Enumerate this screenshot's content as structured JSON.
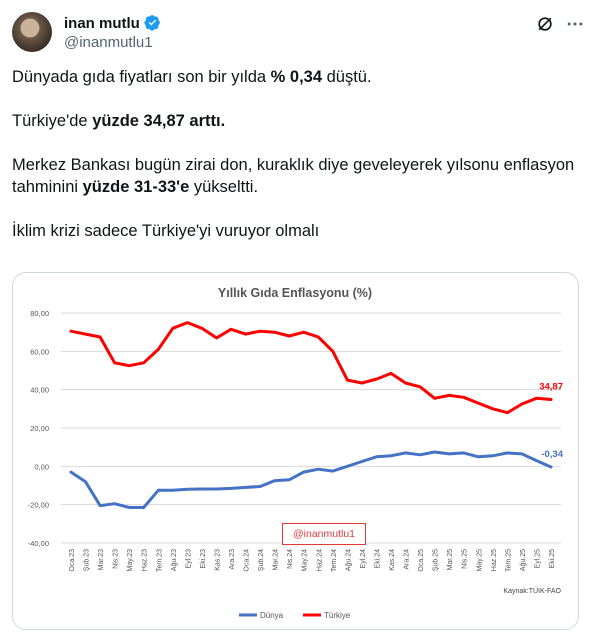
{
  "tweet": {
    "author_name": "inan mutlu",
    "author_handle": "@inanmutlu1",
    "icons": [
      "verified-badge-icon",
      "grok-icon",
      "more-options-icon"
    ],
    "line1_a": "Dünyada gıda fiyatları son bir yılda ",
    "line1_b": "% 0,34",
    "line1_c": " düştü.",
    "line2_a": "Türkiye'de ",
    "line2_b": "yüzde 34,87 arttı.",
    "line3_a": "Merkez Bankası bugün zirai don, kuraklık diye geveleyerek yılsonu enflasyon tahminini ",
    "line3_b": "yüzde 31-33'e",
    "line3_c": " yükseltti.",
    "line4": "İklim krizi sadece Türkiye'yi vuruyor olmalı"
  },
  "watermark": "@inanmutlu1",
  "chart_data": {
    "type": "line",
    "title": "Yıllık Gıda Enflasyonu (%)",
    "categories": [
      "Oca.23",
      "Şub.23",
      "Mar.23",
      "Nis.23",
      "May.23",
      "Haz.23",
      "Tem.23",
      "Ağu.23",
      "Eyl.23",
      "Eki.23",
      "Kas.23",
      "Ara.23",
      "Oca.24",
      "Şub.24",
      "Mar.24",
      "Nis.24",
      "May.24",
      "Haz.24",
      "Tem.24",
      "Ağu.24",
      "Eyl.24",
      "Eki.24",
      "Kas.24",
      "Ara.24",
      "Oca.25",
      "Şub.25",
      "Mar.25",
      "Nis.25",
      "May.25",
      "Haz.25",
      "Tem.25",
      "Ağu.25",
      "Eyl.25",
      "Eki.25"
    ],
    "series": [
      {
        "name": "Dünya",
        "color": "#4472c4",
        "values": [
          -3,
          -8,
          -20.5,
          -19.5,
          -21.5,
          -21.5,
          -12.5,
          -12.5,
          -12,
          -11.8,
          -11.8,
          -11.5,
          -11,
          -10.5,
          -7.5,
          -7,
          -3,
          -1.5,
          -2.5,
          0,
          2.5,
          5,
          5.5,
          7,
          6,
          7.5,
          6.5,
          7,
          5,
          5.5,
          7,
          6.5,
          3,
          -0.34
        ]
      },
      {
        "name": "Türkiye",
        "color": "#ff0000",
        "values": [
          70.5,
          69,
          67.5,
          54,
          52.5,
          54,
          61,
          72,
          75,
          72,
          67,
          71.5,
          69,
          70.5,
          70,
          68,
          70,
          67.5,
          60,
          45,
          43.5,
          45.5,
          48.5,
          43.5,
          41.5,
          35.5,
          37,
          36,
          33,
          30,
          28,
          32.5,
          35.5,
          34.87
        ]
      }
    ],
    "labels": {
      "turkiye_last": "34,87",
      "dunya_last": "-0,34"
    },
    "ylim": [
      -40,
      80
    ],
    "yticks": [
      "80,00",
      "60,00",
      "40,00",
      "20,00",
      "0,00",
      "-20,00",
      "-40,00"
    ],
    "source": "Kaynak:TÜİK-FAO",
    "legend_position": "bottom"
  }
}
